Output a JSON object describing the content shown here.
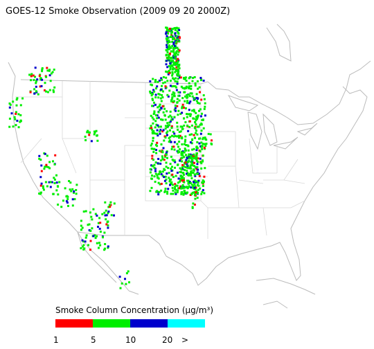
{
  "header": {
    "title": "GOES-12 Smoke Observation (2009 09 20  2000Z)"
  },
  "legend": {
    "title": "Smoke Column Concentration (µg/m³)",
    "segments": [
      {
        "color": "#ff0000"
      },
      {
        "color": "#00ee00"
      },
      {
        "color": "#0000cc"
      },
      {
        "color": "#00ffff"
      }
    ],
    "labels": [
      "1",
      "5",
      "10",
      "20",
      ">"
    ]
  }
}
